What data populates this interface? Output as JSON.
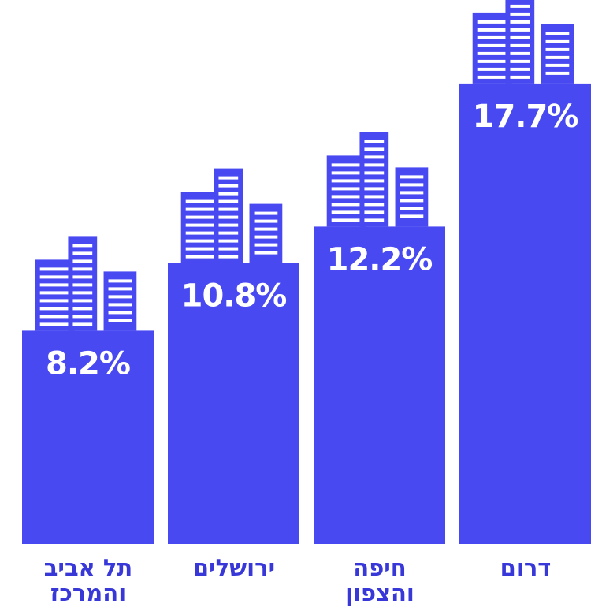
{
  "chart_data": {
    "type": "bar",
    "categories": [
      "תל אביב\nוהמרכז",
      "ירושלים",
      "חיפה\nוהצפון",
      "דרום"
    ],
    "values": [
      8.2,
      10.8,
      12.2,
      17.7
    ],
    "value_labels": [
      "8.2%",
      "10.8%",
      "12.2%",
      "17.7%"
    ],
    "color": "#4949f2"
  }
}
